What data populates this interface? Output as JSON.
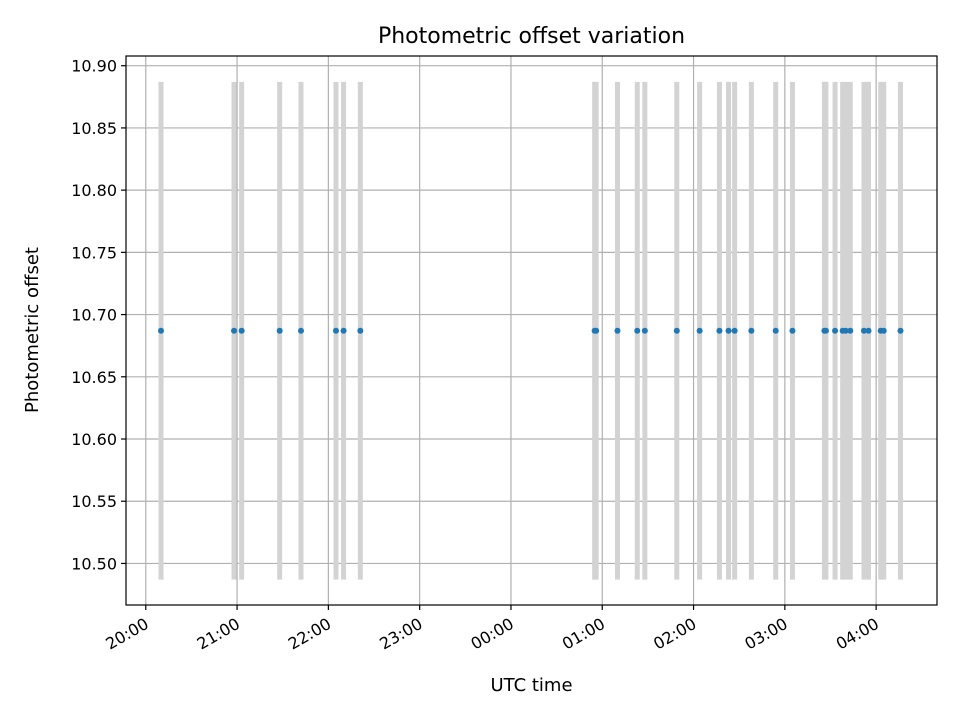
{
  "chart_data": {
    "type": "scatter",
    "title": "Photometric offset variation",
    "xlabel": "UTC time",
    "ylabel": "Photometric offset",
    "xlim": [
      "19:47",
      "04:40"
    ],
    "ylim": [
      10.4666,
      10.9078
    ],
    "x_ticks": [
      "20:00",
      "21:00",
      "22:00",
      "23:00",
      "00:00",
      "01:00",
      "02:00",
      "03:00",
      "04:00"
    ],
    "y_ticks": [
      "10.50",
      "10.55",
      "10.60",
      "10.65",
      "10.70",
      "10.75",
      "10.80",
      "10.85",
      "10.90"
    ],
    "y_tick_values": [
      10.5,
      10.55,
      10.6,
      10.65,
      10.7,
      10.75,
      10.8,
      10.85,
      10.9
    ],
    "grid": true,
    "marker_color": "#1f77b4",
    "band_color": "#d3d3d3",
    "band_range": [
      10.487,
      10.887
    ],
    "points": [
      {
        "x": "20:10",
        "y": 10.687
      },
      {
        "x": "20:58",
        "y": 10.687
      },
      {
        "x": "21:03",
        "y": 10.687
      },
      {
        "x": "21:28",
        "y": 10.687
      },
      {
        "x": "21:42",
        "y": 10.687
      },
      {
        "x": "22:05",
        "y": 10.687
      },
      {
        "x": "22:10",
        "y": 10.687
      },
      {
        "x": "22:21",
        "y": 10.687
      },
      {
        "x": "00:55",
        "y": 10.687
      },
      {
        "x": "00:56",
        "y": 10.687
      },
      {
        "x": "01:10",
        "y": 10.687
      },
      {
        "x": "01:23",
        "y": 10.687
      },
      {
        "x": "01:28",
        "y": 10.687
      },
      {
        "x": "01:49",
        "y": 10.687
      },
      {
        "x": "02:04",
        "y": 10.687
      },
      {
        "x": "02:17",
        "y": 10.687
      },
      {
        "x": "02:23",
        "y": 10.687
      },
      {
        "x": "02:27",
        "y": 10.687
      },
      {
        "x": "02:38",
        "y": 10.687
      },
      {
        "x": "02:54",
        "y": 10.687
      },
      {
        "x": "03:05",
        "y": 10.687
      },
      {
        "x": "03:26",
        "y": 10.687
      },
      {
        "x": "03:27",
        "y": 10.687
      },
      {
        "x": "03:33",
        "y": 10.687
      },
      {
        "x": "03:38",
        "y": 10.687
      },
      {
        "x": "03:40",
        "y": 10.687
      },
      {
        "x": "03:43",
        "y": 10.687
      },
      {
        "x": "03:52",
        "y": 10.687
      },
      {
        "x": "03:55",
        "y": 10.687
      },
      {
        "x": "04:03",
        "y": 10.687
      },
      {
        "x": "04:05",
        "y": 10.687
      },
      {
        "x": "04:16",
        "y": 10.687
      }
    ]
  }
}
